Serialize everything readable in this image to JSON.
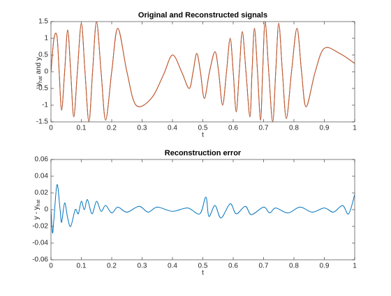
{
  "chart_data": [
    {
      "type": "line",
      "title": "Original and Reconstructed signals",
      "xlabel": "t",
      "ylabel": {
        "base": "y",
        "sub": "hat",
        "rest": " and y"
      },
      "x": [
        0,
        0.01,
        0.02,
        0.027,
        0.035,
        0.045,
        0.055,
        0.065,
        0.075,
        0.087,
        0.1,
        0.112,
        0.125,
        0.137,
        0.15,
        0.165,
        0.18,
        0.2,
        0.22,
        0.25,
        0.28,
        0.33,
        0.37,
        0.4,
        0.43,
        0.455,
        0.468,
        0.48,
        0.492,
        0.505,
        0.522,
        0.54,
        0.552,
        0.565,
        0.578,
        0.59,
        0.6,
        0.61,
        0.62,
        0.63,
        0.642,
        0.655,
        0.662,
        0.67,
        0.68,
        0.69,
        0.697,
        0.705,
        0.717,
        0.73,
        0.74,
        0.75,
        0.762,
        0.775,
        0.792,
        0.81,
        0.825,
        0.84,
        0.87,
        0.9,
        0.95,
        1.0
      ],
      "series": [
        {
          "color": "#0072bd",
          "values": [
            0,
            1.0,
            1.05,
            0,
            -1.15,
            0,
            1.25,
            0,
            -1.35,
            0,
            1.45,
            0,
            -1.5,
            0,
            1.5,
            0,
            -1.45,
            0,
            1.3,
            0,
            -1.0,
            -0.8,
            -0.1,
            0.5,
            0,
            -0.5,
            0,
            0.55,
            0,
            -0.8,
            0,
            0.6,
            0,
            -1.0,
            0,
            1.0,
            0,
            -1.2,
            0,
            1.2,
            0,
            -1.35,
            0,
            1.3,
            0,
            -1.45,
            0,
            1.5,
            0,
            -1.5,
            0,
            1.45,
            0,
            -1.4,
            0,
            1.3,
            0,
            -1.05,
            0,
            0.7,
            0.55,
            0.25
          ]
        },
        {
          "color": "#d95319",
          "values": [
            0,
            1.0,
            1.05,
            0,
            -1.15,
            0,
            1.25,
            0,
            -1.35,
            0,
            1.45,
            0,
            -1.5,
            0,
            1.5,
            0,
            -1.45,
            0,
            1.3,
            0,
            -1.0,
            -0.8,
            -0.1,
            0.5,
            0,
            -0.5,
            0,
            0.55,
            0,
            -0.8,
            0,
            0.6,
            0,
            -1.0,
            0,
            1.0,
            0,
            -1.2,
            0,
            1.2,
            0,
            -1.35,
            0,
            1.3,
            0,
            -1.45,
            0,
            1.5,
            0,
            -1.5,
            0,
            1.45,
            0,
            -1.4,
            0,
            1.3,
            0,
            -1.05,
            0,
            0.7,
            0.55,
            0.25
          ]
        }
      ],
      "xlim": [
        0,
        1
      ],
      "ylim": [
        -1.5,
        1.5
      ],
      "xticks": [
        0,
        0.1,
        0.2,
        0.3,
        0.4,
        0.5,
        0.6,
        0.7,
        0.8,
        0.9,
        1
      ],
      "yticks": [
        -1.5,
        -1,
        -0.5,
        0,
        0.5,
        1,
        1.5
      ]
    },
    {
      "type": "line",
      "title": "Reconstruction error",
      "xlabel": "t",
      "ylabel": {
        "base": "y - y",
        "sub": "hat",
        "rest": ""
      },
      "x": [
        0,
        0.005,
        0.01,
        0.02,
        0.03,
        0.035,
        0.045,
        0.055,
        0.065,
        0.08,
        0.09,
        0.1,
        0.11,
        0.12,
        0.135,
        0.15,
        0.165,
        0.18,
        0.2,
        0.22,
        0.25,
        0.29,
        0.32,
        0.35,
        0.4,
        0.45,
        0.49,
        0.51,
        0.52,
        0.54,
        0.56,
        0.59,
        0.61,
        0.64,
        0.66,
        0.7,
        0.72,
        0.74,
        0.78,
        0.82,
        0.86,
        0.9,
        0.93,
        0.96,
        0.98,
        1.0
      ],
      "series": [
        {
          "color": "#0072bd",
          "values": [
            0,
            -0.028,
            -0.01,
            0.03,
            0,
            -0.015,
            0.008,
            -0.01,
            -0.02,
            0,
            -0.005,
            0.01,
            0,
            0.012,
            -0.005,
            0.01,
            -0.002,
            0.005,
            -0.004,
            0.003,
            -0.003,
            0.004,
            -0.003,
            0.003,
            -0.002,
            0.002,
            -0.005,
            0.015,
            -0.008,
            0.005,
            -0.01,
            0.007,
            -0.005,
            0.004,
            -0.006,
            0.003,
            -0.004,
            0.002,
            -0.004,
            0.003,
            -0.003,
            0.002,
            -0.003,
            0.005,
            -0.005,
            0.018
          ]
        }
      ],
      "xlim": [
        0,
        1
      ],
      "ylim": [
        -0.06,
        0.06
      ],
      "xticks": [
        0,
        0.1,
        0.2,
        0.3,
        0.4,
        0.5,
        0.6,
        0.7,
        0.8,
        0.9,
        1
      ],
      "yticks": [
        -0.06,
        -0.04,
        -0.02,
        0,
        0.02,
        0.04,
        0.06
      ]
    }
  ]
}
